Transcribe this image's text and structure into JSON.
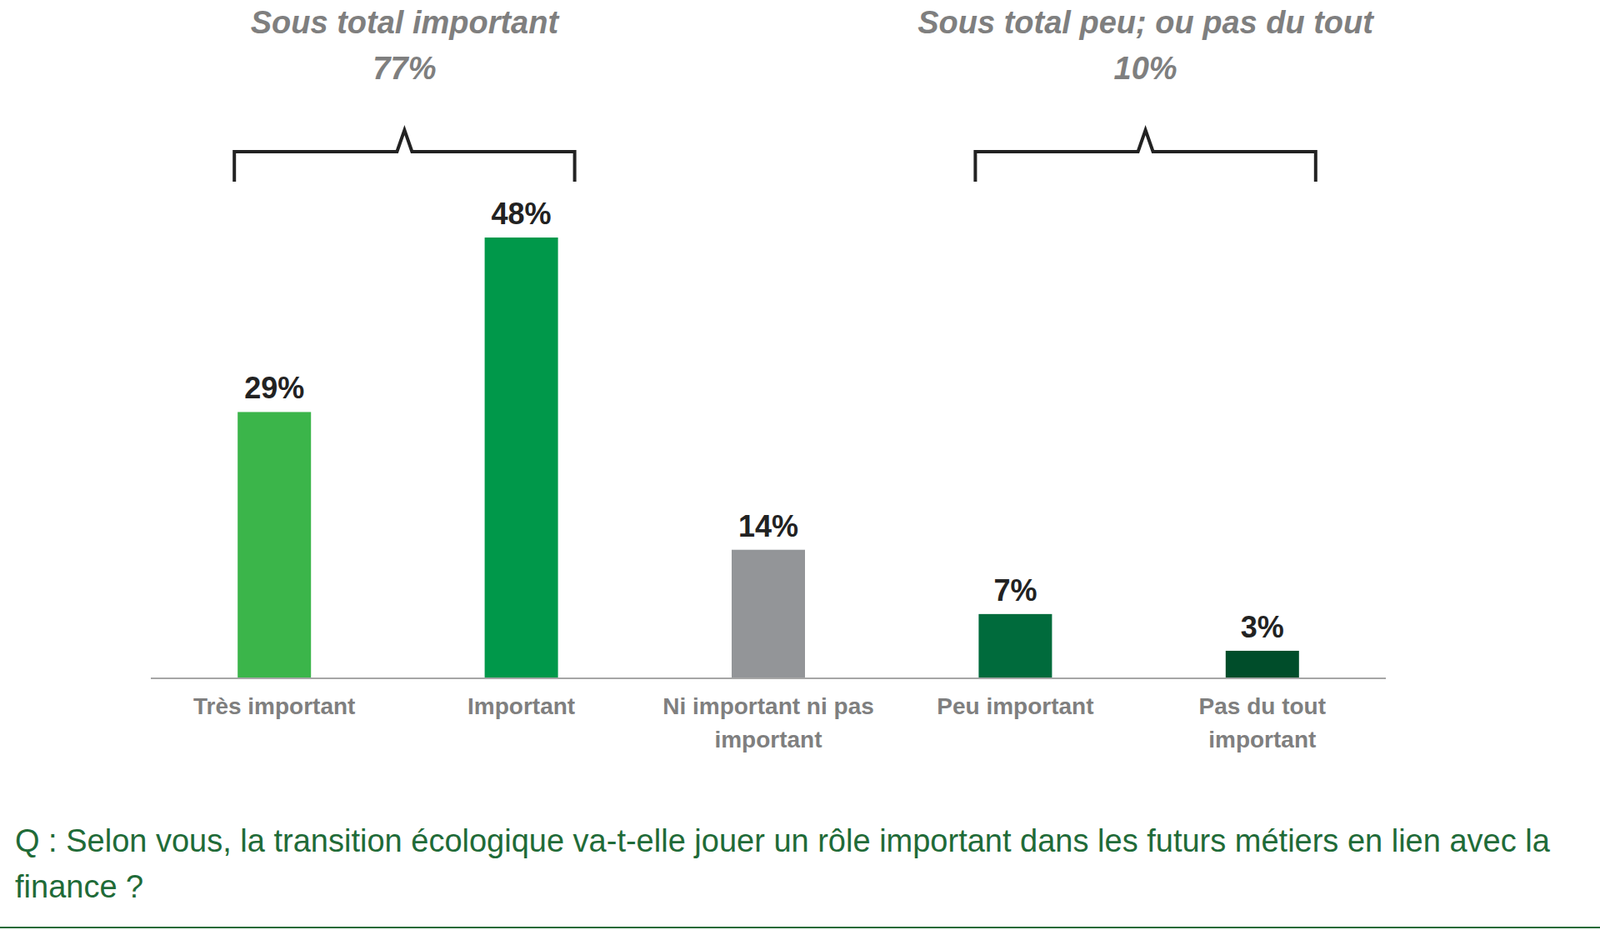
{
  "chart_data": {
    "type": "bar",
    "title": "Q : Selon vous, la transition écologique va-t-elle jouer un rôle important dans les futurs métiers en lien avec la finance ?",
    "categories": [
      "Très important",
      "Important",
      "Ni important ni pas important",
      "Peu important",
      "Pas du tout important"
    ],
    "values": [
      29,
      48,
      14,
      7,
      3
    ],
    "value_labels": [
      "29%",
      "48%",
      "14%",
      "7%",
      "3%"
    ],
    "colors": [
      "#3bb54a",
      "#00984a",
      "#939598",
      "#006b3c",
      "#004d2a"
    ],
    "ylim": [
      0,
      50
    ],
    "data_labels": true,
    "tick_labels": "x",
    "annotations": [
      {
        "text": "Sous total important",
        "value": 77,
        "label": "77%"
      },
      {
        "text": "Sous total peu; ou pas du tout",
        "value": 10,
        "label": "10%"
      }
    ]
  }
}
